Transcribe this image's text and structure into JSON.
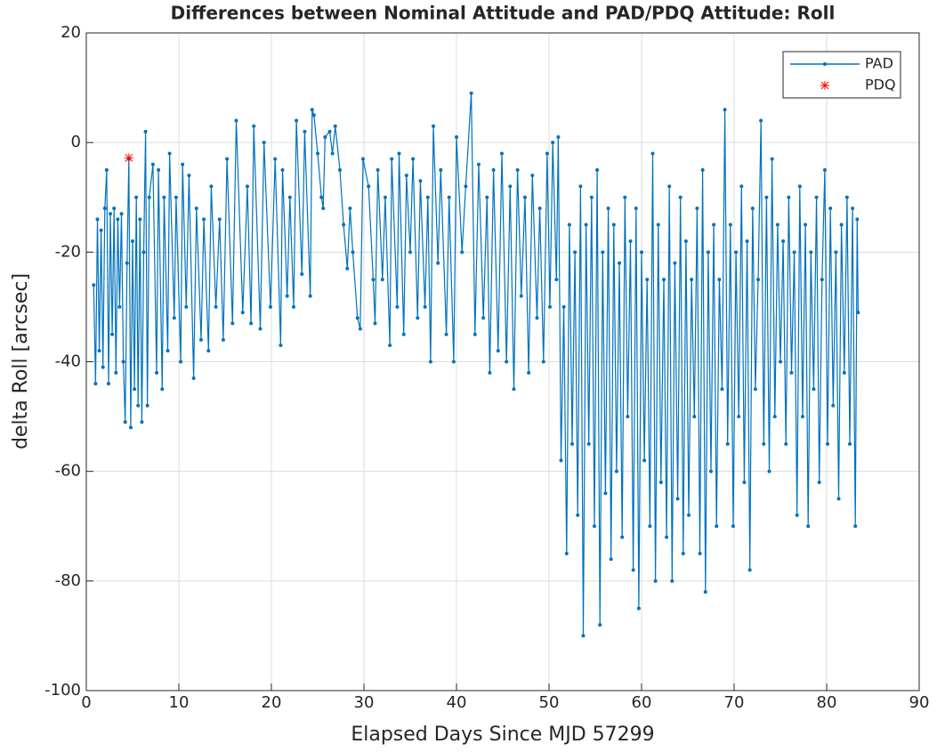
{
  "chart_data": {
    "type": "line",
    "title": "Differences between Nominal Attitude and PAD/PDQ Attitude: Roll",
    "xlabel": "Elapsed Days Since MJD 57299",
    "ylabel": "delta Roll [arcsec]",
    "xlim": [
      0,
      90
    ],
    "xticks": [
      0,
      10,
      20,
      30,
      40,
      50,
      60,
      70,
      80,
      90
    ],
    "ylim": [
      -100,
      20
    ],
    "yticks": [
      -100,
      -80,
      -60,
      -40,
      -20,
      0,
      20
    ],
    "grid": true,
    "legend": "upper right",
    "series": [
      {
        "name": "PAD",
        "color": "#0072bd",
        "marker": "dot",
        "x": [
          0.8,
          1.0,
          1.2,
          1.4,
          1.6,
          1.8,
          2.0,
          2.2,
          2.4,
          2.6,
          2.8,
          3.0,
          3.2,
          3.4,
          3.6,
          3.8,
          4.0,
          4.2,
          4.4,
          4.6,
          4.8,
          5.0,
          5.2,
          5.4,
          5.6,
          5.8,
          6.0,
          6.2,
          6.4,
          6.6,
          6.8,
          7.2,
          7.6,
          7.8,
          8.2,
          8.4,
          8.8,
          9.0,
          9.5,
          9.7,
          10.2,
          10.4,
          10.8,
          11.1,
          11.6,
          11.9,
          12.4,
          12.7,
          13.2,
          13.5,
          14.0,
          14.4,
          14.8,
          15.2,
          15.8,
          16.2,
          16.9,
          17.4,
          17.8,
          18.1,
          18.8,
          19.2,
          19.9,
          20.4,
          21.0,
          21.2,
          21.7,
          22.0,
          22.4,
          22.7,
          23.3,
          23.6,
          24.2,
          24.4,
          24.6,
          25.0,
          25.4,
          25.6,
          25.8,
          26.3,
          26.6,
          26.9,
          27.4,
          27.8,
          28.2,
          28.5,
          28.8,
          29.3,
          29.6,
          29.9,
          30.5,
          31.0,
          31.2,
          31.5,
          32.0,
          32.3,
          32.8,
          33.0,
          33.6,
          33.8,
          34.3,
          34.6,
          35.0,
          35.3,
          35.8,
          36.1,
          36.6,
          36.9,
          37.2,
          37.5,
          38.0,
          38.3,
          38.9,
          39.2,
          39.7,
          40.0,
          40.6,
          41.0,
          41.6,
          42.0,
          42.4,
          42.9,
          43.3,
          43.6,
          44.0,
          44.5,
          44.9,
          45.4,
          45.8,
          46.2,
          46.6,
          47.0,
          47.4,
          47.8,
          48.2,
          48.7,
          49.0,
          49.4,
          49.8,
          50.1,
          50.4,
          50.8,
          51.0,
          51.3,
          51.6,
          51.9,
          52.2,
          52.5,
          52.8,
          53.1,
          53.4,
          53.7,
          54.0,
          54.3,
          54.6,
          54.9,
          55.2,
          55.5,
          55.8,
          56.1,
          56.4,
          56.7,
          57.0,
          57.3,
          57.6,
          57.9,
          58.2,
          58.5,
          58.8,
          59.1,
          59.4,
          59.7,
          60.0,
          60.3,
          60.6,
          60.9,
          61.2,
          61.5,
          61.8,
          62.1,
          62.4,
          62.7,
          63.0,
          63.3,
          63.6,
          63.9,
          64.2,
          64.5,
          64.8,
          65.1,
          65.4,
          65.7,
          66.0,
          66.3,
          66.6,
          66.9,
          67.2,
          67.5,
          67.8,
          68.1,
          68.4,
          68.7,
          69.0,
          69.3,
          69.6,
          69.9,
          70.2,
          70.5,
          70.8,
          71.1,
          71.4,
          71.7,
          72.0,
          72.3,
          72.6,
          72.9,
          73.2,
          73.5,
          73.8,
          74.1,
          74.4,
          74.7,
          75.0,
          75.3,
          75.6,
          75.9,
          76.2,
          76.5,
          76.8,
          77.1,
          77.4,
          77.7,
          78.0,
          78.3,
          78.6,
          78.9,
          79.2,
          79.5,
          79.8,
          80.1,
          80.4,
          80.7,
          81.0,
          81.3,
          81.6,
          81.9,
          82.2,
          82.5,
          82.8,
          83.1,
          83.3,
          83.4
        ],
        "values": [
          -26,
          -44,
          -14,
          -38,
          -16,
          -41,
          -12,
          -5,
          -44,
          -13,
          -35,
          -12,
          -42,
          -14,
          -30,
          -13,
          -40,
          -51,
          -22,
          -3,
          -52,
          -18,
          -45,
          -10,
          -48,
          -14,
          -51,
          -20,
          2,
          -48,
          -10,
          -4,
          -42,
          -5,
          -45,
          -10,
          -38,
          -2,
          -32,
          -10,
          -40,
          -4,
          -30,
          -6,
          -43,
          -12,
          -36,
          -14,
          -38,
          -8,
          -30,
          -14,
          -36,
          -3,
          -33,
          4,
          -31,
          -8,
          -33,
          3,
          -34,
          0,
          -30,
          -3,
          -37,
          -5,
          -28,
          -10,
          -30,
          4,
          -24,
          2,
          -28,
          6,
          5,
          -2,
          -10,
          -12,
          1,
          2,
          -2,
          3,
          -5,
          -15,
          -23,
          -12,
          -20,
          -32,
          -34,
          -3,
          -8,
          -25,
          -33,
          -5,
          -25,
          -10,
          -37,
          -3,
          -30,
          -2,
          -35,
          -6,
          -20,
          -3,
          -32,
          -7,
          -30,
          -10,
          -40,
          3,
          -22,
          -5,
          -35,
          -10,
          -40,
          1,
          -20,
          -8,
          9,
          -35,
          -4,
          -32,
          -10,
          -42,
          -5,
          -38,
          -2,
          -40,
          -8,
          -45,
          -5,
          -28,
          -10,
          -42,
          -6,
          -32,
          -12,
          -40,
          -2,
          -30,
          0,
          -25,
          1,
          -58,
          -30,
          -75,
          -15,
          -55,
          -20,
          -68,
          -8,
          -90,
          -15,
          -55,
          -10,
          -70,
          -5,
          -88,
          -20,
          -64,
          -12,
          -76,
          -15,
          -60,
          -22,
          -72,
          -10,
          -50,
          -18,
          -78,
          -12,
          -85,
          -20,
          -58,
          -25,
          -70,
          -2,
          -80,
          -15,
          -62,
          -25,
          -72,
          -8,
          -80,
          -22,
          -65,
          -10,
          -75,
          -18,
          -68,
          -25,
          -50,
          -12,
          -75,
          -5,
          -82,
          -20,
          -60,
          -15,
          -70,
          -25,
          -45,
          6,
          -55,
          -15,
          -70,
          -20,
          -50,
          -8,
          -62,
          -18,
          -78,
          -12,
          -45,
          -25,
          4,
          -55,
          -10,
          -60,
          -3,
          -50,
          -15,
          -40,
          -18,
          -55,
          -10,
          -42,
          -20,
          -68,
          -8,
          -50,
          -15,
          -70,
          -20,
          -45,
          -10,
          -62,
          -25,
          -5,
          -55,
          -12,
          -48,
          -20,
          -65,
          -15,
          -42,
          -10,
          -55,
          -12,
          -70,
          -14,
          -31
        ]
      },
      {
        "name": "PDQ",
        "color": "#ff0000",
        "marker": "asterisk",
        "x": [
          4.6
        ],
        "values": [
          -2.8
        ]
      }
    ]
  }
}
